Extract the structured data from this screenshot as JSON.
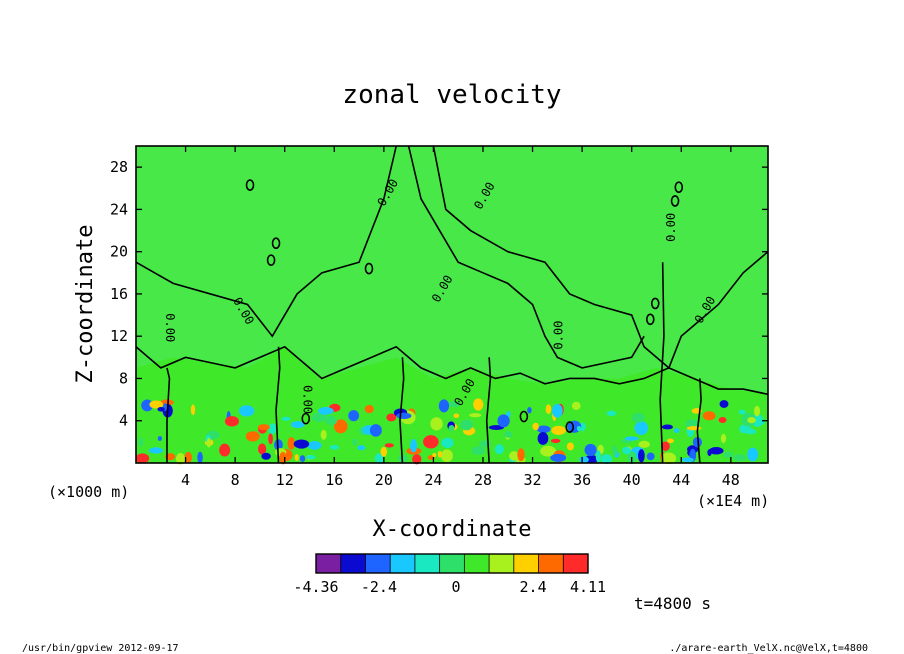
{
  "chart_data": {
    "type": "heatmap",
    "title": "zonal velocity",
    "xlabel": "X-coordinate",
    "ylabel": "Z-coordinate",
    "x_unit": "(×1E4 m)",
    "y_unit": "(×1000 m)",
    "x_ticks": [
      4,
      8,
      12,
      16,
      20,
      24,
      28,
      32,
      36,
      40,
      44,
      48
    ],
    "y_ticks": [
      4,
      8,
      12,
      16,
      20,
      24,
      28
    ],
    "xlim": [
      0,
      51
    ],
    "ylim": [
      0,
      30
    ],
    "contour_label": "0.00",
    "colorbar": {
      "tick_labels": [
        "-4.36",
        "-2.4",
        "0",
        "2.4",
        "4.11"
      ],
      "range": [
        -4.36,
        4.11
      ],
      "colors": [
        "#7b1fa2",
        "#0a0ad0",
        "#1e64ff",
        "#19c8ff",
        "#19e8c0",
        "#2ee06a",
        "#40e82a",
        "#a8f01e",
        "#ffd000",
        "#ff6a00",
        "#ff2a2a"
      ]
    },
    "background_color": "#47e847",
    "annotations": {
      "time": "t=4800 s",
      "footer_left": "/usr/bin/gpview  2012-09-17",
      "footer_right": "./arare-earth_VelX.nc@VelX,t=4800"
    }
  }
}
